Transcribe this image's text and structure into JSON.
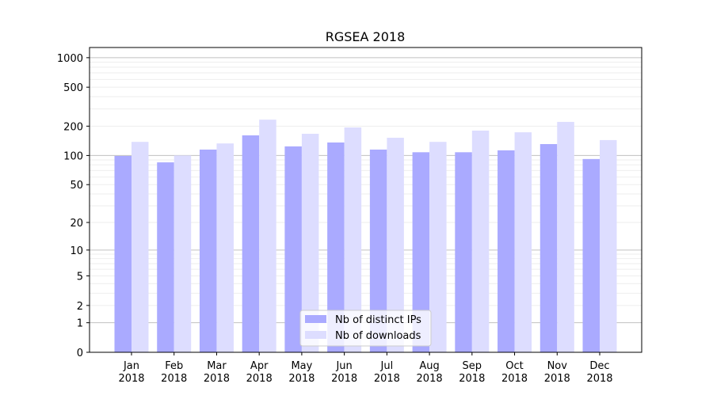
{
  "chart_data": {
    "type": "bar",
    "title": "RGSEA 2018",
    "xlabel": "",
    "ylabel": "",
    "yscale": "log(1+y)",
    "ylim": [
      0,
      1270
    ],
    "yticks": [
      0,
      1,
      2,
      5,
      10,
      20,
      50,
      100,
      200,
      500,
      1000
    ],
    "grid": true,
    "legend_position": "lower-center",
    "categories": [
      "Jan\n2018",
      "Feb\n2018",
      "Mar\n2018",
      "Apr\n2018",
      "May\n2018",
      "Jun\n2018",
      "Jul\n2018",
      "Aug\n2018",
      "Sep\n2018",
      "Oct\n2018",
      "Nov\n2018",
      "Dec\n2018"
    ],
    "series": [
      {
        "name": "Nb of distinct IPs",
        "color": "#aaaaff",
        "values": [
          99,
          85,
          115,
          161,
          124,
          136,
          115,
          108,
          108,
          113,
          131,
          92
        ]
      },
      {
        "name": "Nb of downloads",
        "color": "#ddddff",
        "values": [
          138,
          100,
          133,
          233,
          167,
          194,
          152,
          138,
          180,
          173,
          221,
          144
        ]
      }
    ]
  }
}
